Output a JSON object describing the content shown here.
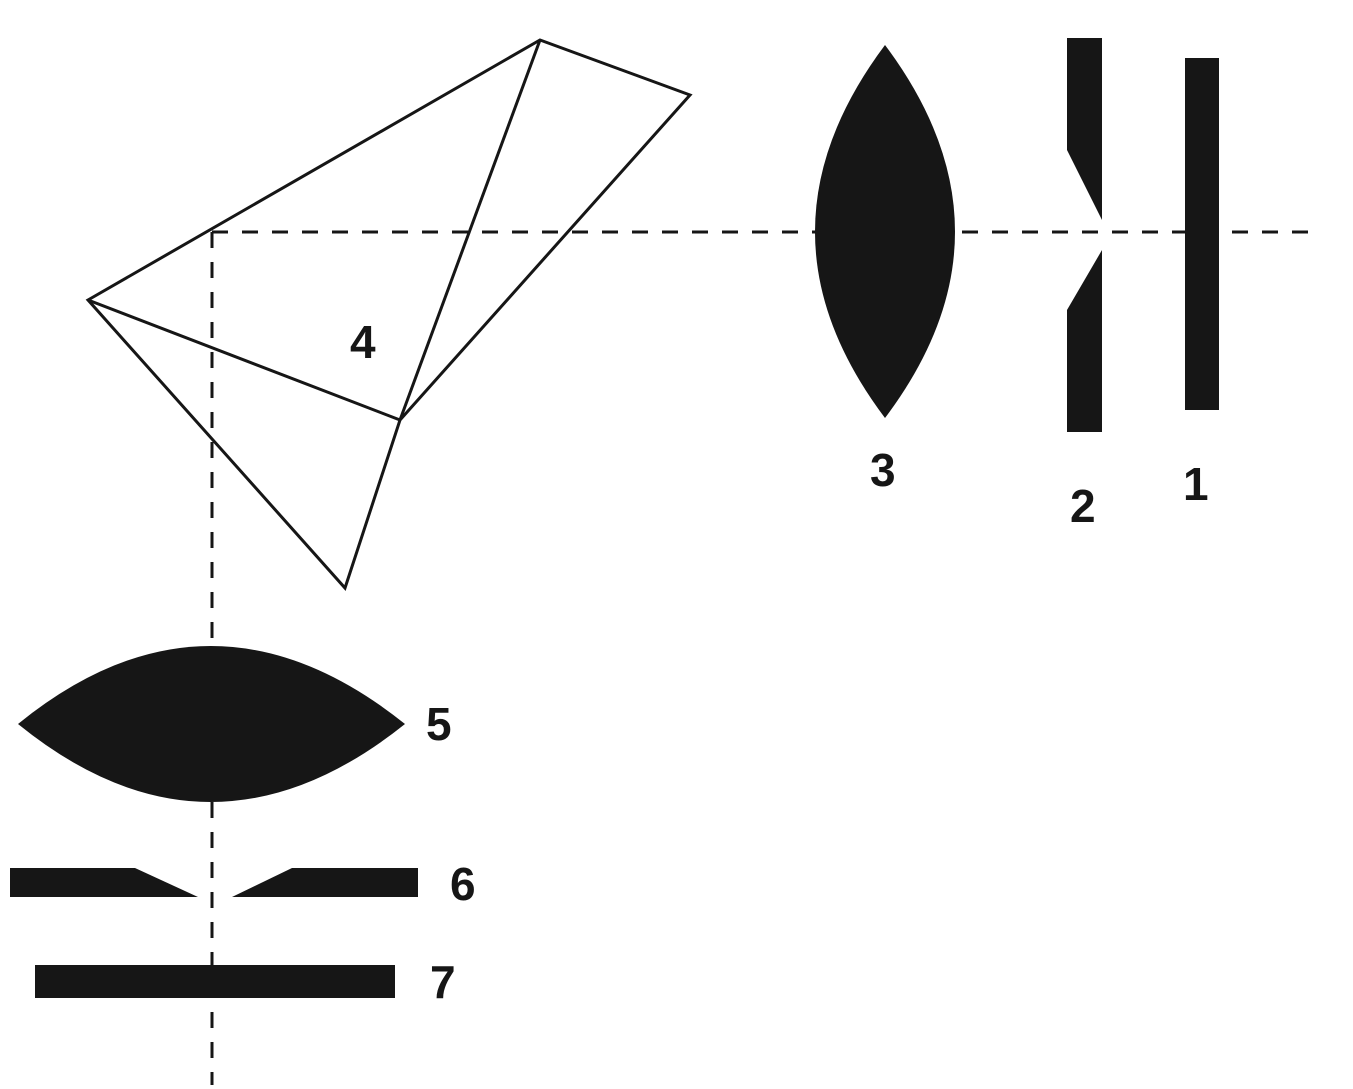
{
  "colors": {
    "ink": "#161616",
    "paper": "#ffffff"
  },
  "labels": {
    "element_1": "1",
    "element_2": "2",
    "element_3": "3",
    "element_4": "4",
    "element_5": "5",
    "element_6": "6",
    "element_7": "7"
  }
}
